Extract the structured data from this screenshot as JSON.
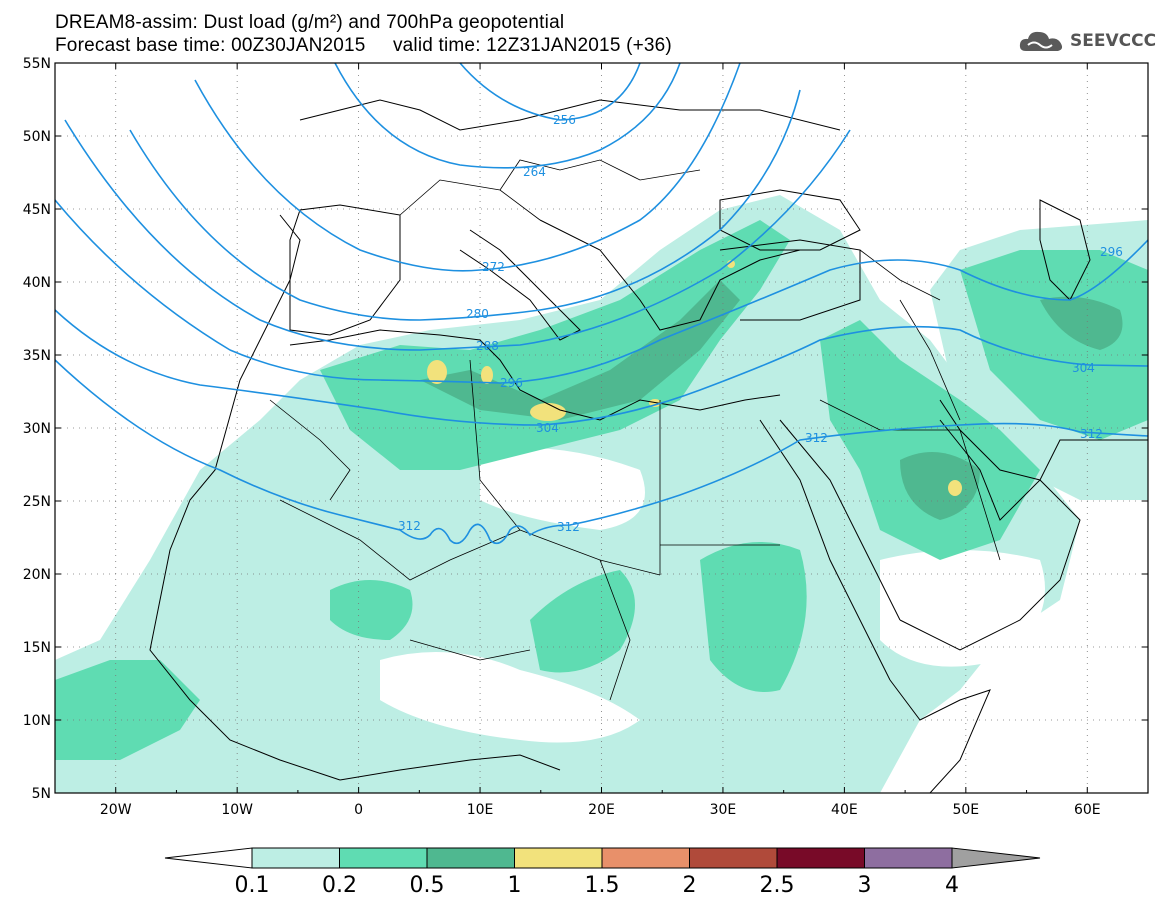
{
  "header": {
    "title_line1": "DREAM8-assim: Dust load (g/m²) and 700hPa geopotential",
    "title_line2": "Forecast base time: 00Z30JAN2015     valid time: 12Z31JAN2015 (+36)",
    "logo_text": "SEEVCCC",
    "logo_icon": "cloud-icon"
  },
  "map": {
    "lon_range": [
      -25,
      65
    ],
    "lat_range": [
      5,
      55
    ],
    "lat_labels": [
      "55N",
      "50N",
      "45N",
      "40N",
      "35N",
      "30N",
      "25N",
      "20N",
      "15N",
      "10N",
      "5N"
    ],
    "lon_labels": [
      "20W",
      "10W",
      "0",
      "10E",
      "20E",
      "30E",
      "40E",
      "50E",
      "60E"
    ],
    "contour_color": "#1e90e0",
    "contour_labels": [
      "256",
      "264",
      "272",
      "280",
      "288",
      "296",
      "304",
      "312",
      "312",
      "296",
      "304",
      "312"
    ]
  },
  "colorbar": {
    "levels": [
      "0.1",
      "0.2",
      "0.5",
      "1",
      "1.5",
      "2",
      "2.5",
      "3",
      "4"
    ],
    "colors": [
      "#bdeee4",
      "#5fdcb2",
      "#4fb890",
      "#f2e27c",
      "#e8906a",
      "#b04a3a",
      "#780a28",
      "#8e6ea0"
    ],
    "under_color": "#ffffff",
    "over_color": "#a0a0a0"
  }
}
